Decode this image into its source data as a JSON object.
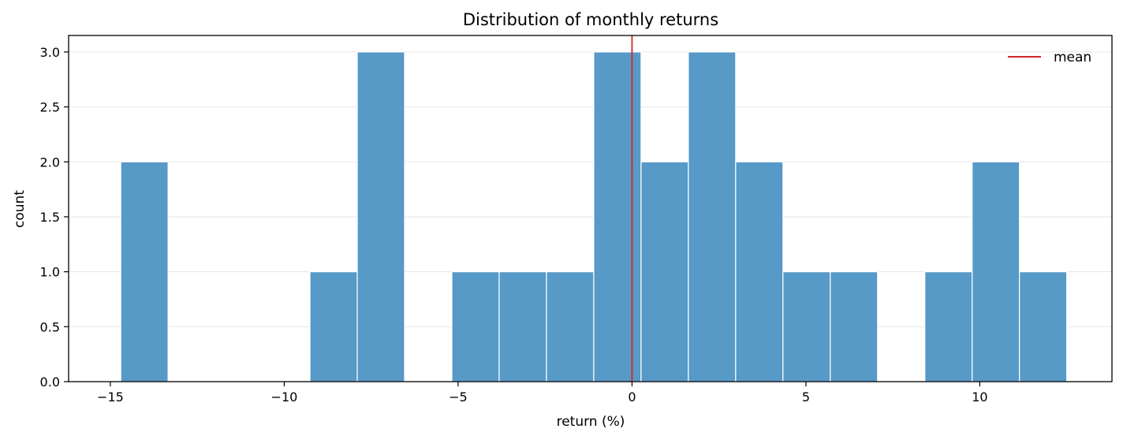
{
  "chart_data": {
    "type": "bar",
    "title": "Distribution of monthly returns",
    "xlabel": "return (%)",
    "ylabel": "count",
    "xlim": [
      -16.2,
      13.8
    ],
    "ylim": [
      0,
      3.15
    ],
    "xticks": [
      -15,
      -10,
      -5,
      0,
      5,
      10
    ],
    "xtick_labels": [
      "−15",
      "−10",
      "−5",
      "0",
      "5",
      "10"
    ],
    "yticks": [
      0,
      0.5,
      1,
      1.5,
      2,
      2.5,
      3
    ],
    "ytick_labels": [
      "0.0",
      "0.5",
      "1.0",
      "1.5",
      "2.0",
      "2.5",
      "3.0"
    ],
    "bin_edges": [
      -14.7,
      -13.34,
      -11.98,
      -10.62,
      -9.26,
      -7.9,
      -6.54,
      -5.18,
      -3.82,
      -2.46,
      -1.1,
      0.26,
      1.62,
      2.98,
      4.34,
      5.7,
      7.06,
      8.42,
      9.78,
      11.14,
      12.5
    ],
    "counts": [
      2,
      0,
      0,
      0,
      1,
      3,
      0,
      1,
      1,
      1,
      3,
      2,
      3,
      2,
      1,
      1,
      0,
      1,
      2,
      1
    ],
    "mean_line": {
      "x": 0.0,
      "label": "mean",
      "color": "#d62728"
    },
    "bar_color": "#5799c7",
    "grid": "horizontal",
    "legend": "top-right"
  }
}
